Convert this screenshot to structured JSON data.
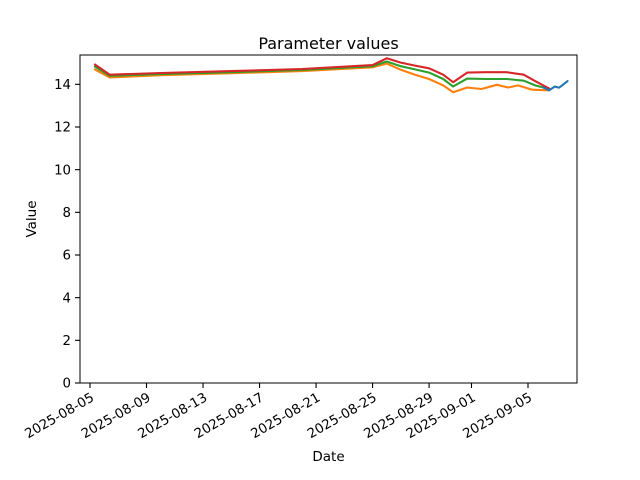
{
  "figure": {
    "background_color": "#ffffff",
    "axes_edge_color": "#000000",
    "text_color": "#000000"
  },
  "chart_data": {
    "type": "line",
    "title": "Parameter values",
    "xlabel": "Date",
    "ylabel": "Value",
    "grid": false,
    "legend": "none",
    "markers": "none",
    "ylim": [
      0,
      15.4
    ],
    "y_ticks": [
      0,
      2,
      4,
      6,
      8,
      10,
      12,
      14
    ],
    "x_tick_rotation_deg": 30,
    "x_epoch_date": "2025-08-05",
    "x_ticks": [
      {
        "label": "2025-08-05",
        "day": 0
      },
      {
        "label": "2025-08-09",
        "day": 4
      },
      {
        "label": "2025-08-13",
        "day": 8
      },
      {
        "label": "2025-08-17",
        "day": 12
      },
      {
        "label": "2025-08-21",
        "day": 16
      },
      {
        "label": "2025-08-25",
        "day": 20
      },
      {
        "label": "2025-08-29",
        "day": 24
      },
      {
        "label": "2025-09-01",
        "day": 27
      },
      {
        "label": "2025-09-05",
        "day": 31
      }
    ],
    "series": [
      {
        "name": "orange-line",
        "color": "#ff7f0e",
        "points": [
          [
            0.35,
            14.7
          ],
          [
            1.4,
            14.32
          ],
          [
            5,
            14.43
          ],
          [
            10,
            14.52
          ],
          [
            15,
            14.62
          ],
          [
            20,
            14.8
          ],
          [
            21,
            14.97
          ],
          [
            22,
            14.68
          ],
          [
            23,
            14.45
          ],
          [
            24,
            14.25
          ],
          [
            25,
            13.95
          ],
          [
            25.7,
            13.63
          ],
          [
            26.7,
            13.85
          ],
          [
            27.7,
            13.78
          ],
          [
            28.8,
            13.98
          ],
          [
            29.6,
            13.85
          ],
          [
            30.3,
            13.95
          ],
          [
            31.3,
            13.75
          ],
          [
            32.5,
            13.72
          ]
        ]
      },
      {
        "name": "green-line",
        "color": "#2ca02c",
        "points": [
          [
            0.35,
            14.83
          ],
          [
            1.4,
            14.4
          ],
          [
            5,
            14.48
          ],
          [
            10,
            14.57
          ],
          [
            15,
            14.67
          ],
          [
            20,
            14.85
          ],
          [
            21,
            15.07
          ],
          [
            22,
            14.85
          ],
          [
            23,
            14.7
          ],
          [
            24,
            14.55
          ],
          [
            25,
            14.25
          ],
          [
            25.7,
            13.9
          ],
          [
            26.7,
            14.27
          ],
          [
            28,
            14.25
          ],
          [
            29.5,
            14.25
          ],
          [
            30.7,
            14.17
          ],
          [
            31.5,
            13.95
          ],
          [
            32.5,
            13.78
          ]
        ]
      },
      {
        "name": "red-line",
        "color": "#d62728",
        "points": [
          [
            0.35,
            14.93
          ],
          [
            1.4,
            14.45
          ],
          [
            5,
            14.53
          ],
          [
            10,
            14.62
          ],
          [
            15,
            14.72
          ],
          [
            20,
            14.9
          ],
          [
            21,
            15.22
          ],
          [
            22,
            15.02
          ],
          [
            23,
            14.88
          ],
          [
            24,
            14.75
          ],
          [
            25,
            14.45
          ],
          [
            25.7,
            14.1
          ],
          [
            26.7,
            14.55
          ],
          [
            28,
            14.57
          ],
          [
            29.5,
            14.57
          ],
          [
            30.7,
            14.45
          ],
          [
            31.5,
            14.15
          ],
          [
            32.5,
            13.8
          ]
        ]
      },
      {
        "name": "blue-line",
        "color": "#1f77b4",
        "points": [
          [
            32.1,
            13.85
          ],
          [
            32.5,
            13.72
          ],
          [
            32.9,
            13.9
          ],
          [
            33.2,
            13.84
          ],
          [
            33.8,
            14.15
          ]
        ]
      }
    ]
  }
}
